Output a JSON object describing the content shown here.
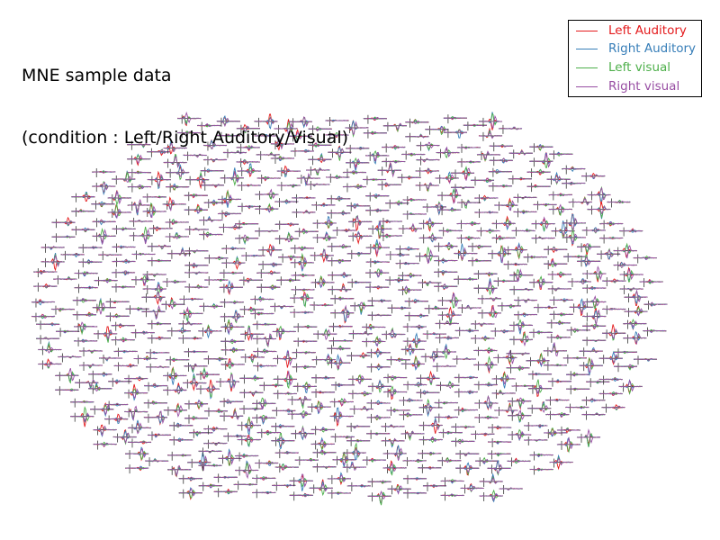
{
  "chart_data": {
    "type": "line",
    "title_lines": [
      "MNE sample data",
      "(condition : Left/Right Auditory/Visual)"
    ],
    "xlabel": "",
    "ylabel": "",
    "legend_placement": "top-right",
    "grid": false,
    "series": [
      {
        "name": "Left Auditory",
        "color": "#e41a1c"
      },
      {
        "name": "Right Auditory",
        "color": "#377eb8"
      },
      {
        "name": "Left visual",
        "color": "#4daf4a"
      },
      {
        "name": "Right visual",
        "color": "#984ea3"
      }
    ],
    "sensor_channel_count": 306
  }
}
